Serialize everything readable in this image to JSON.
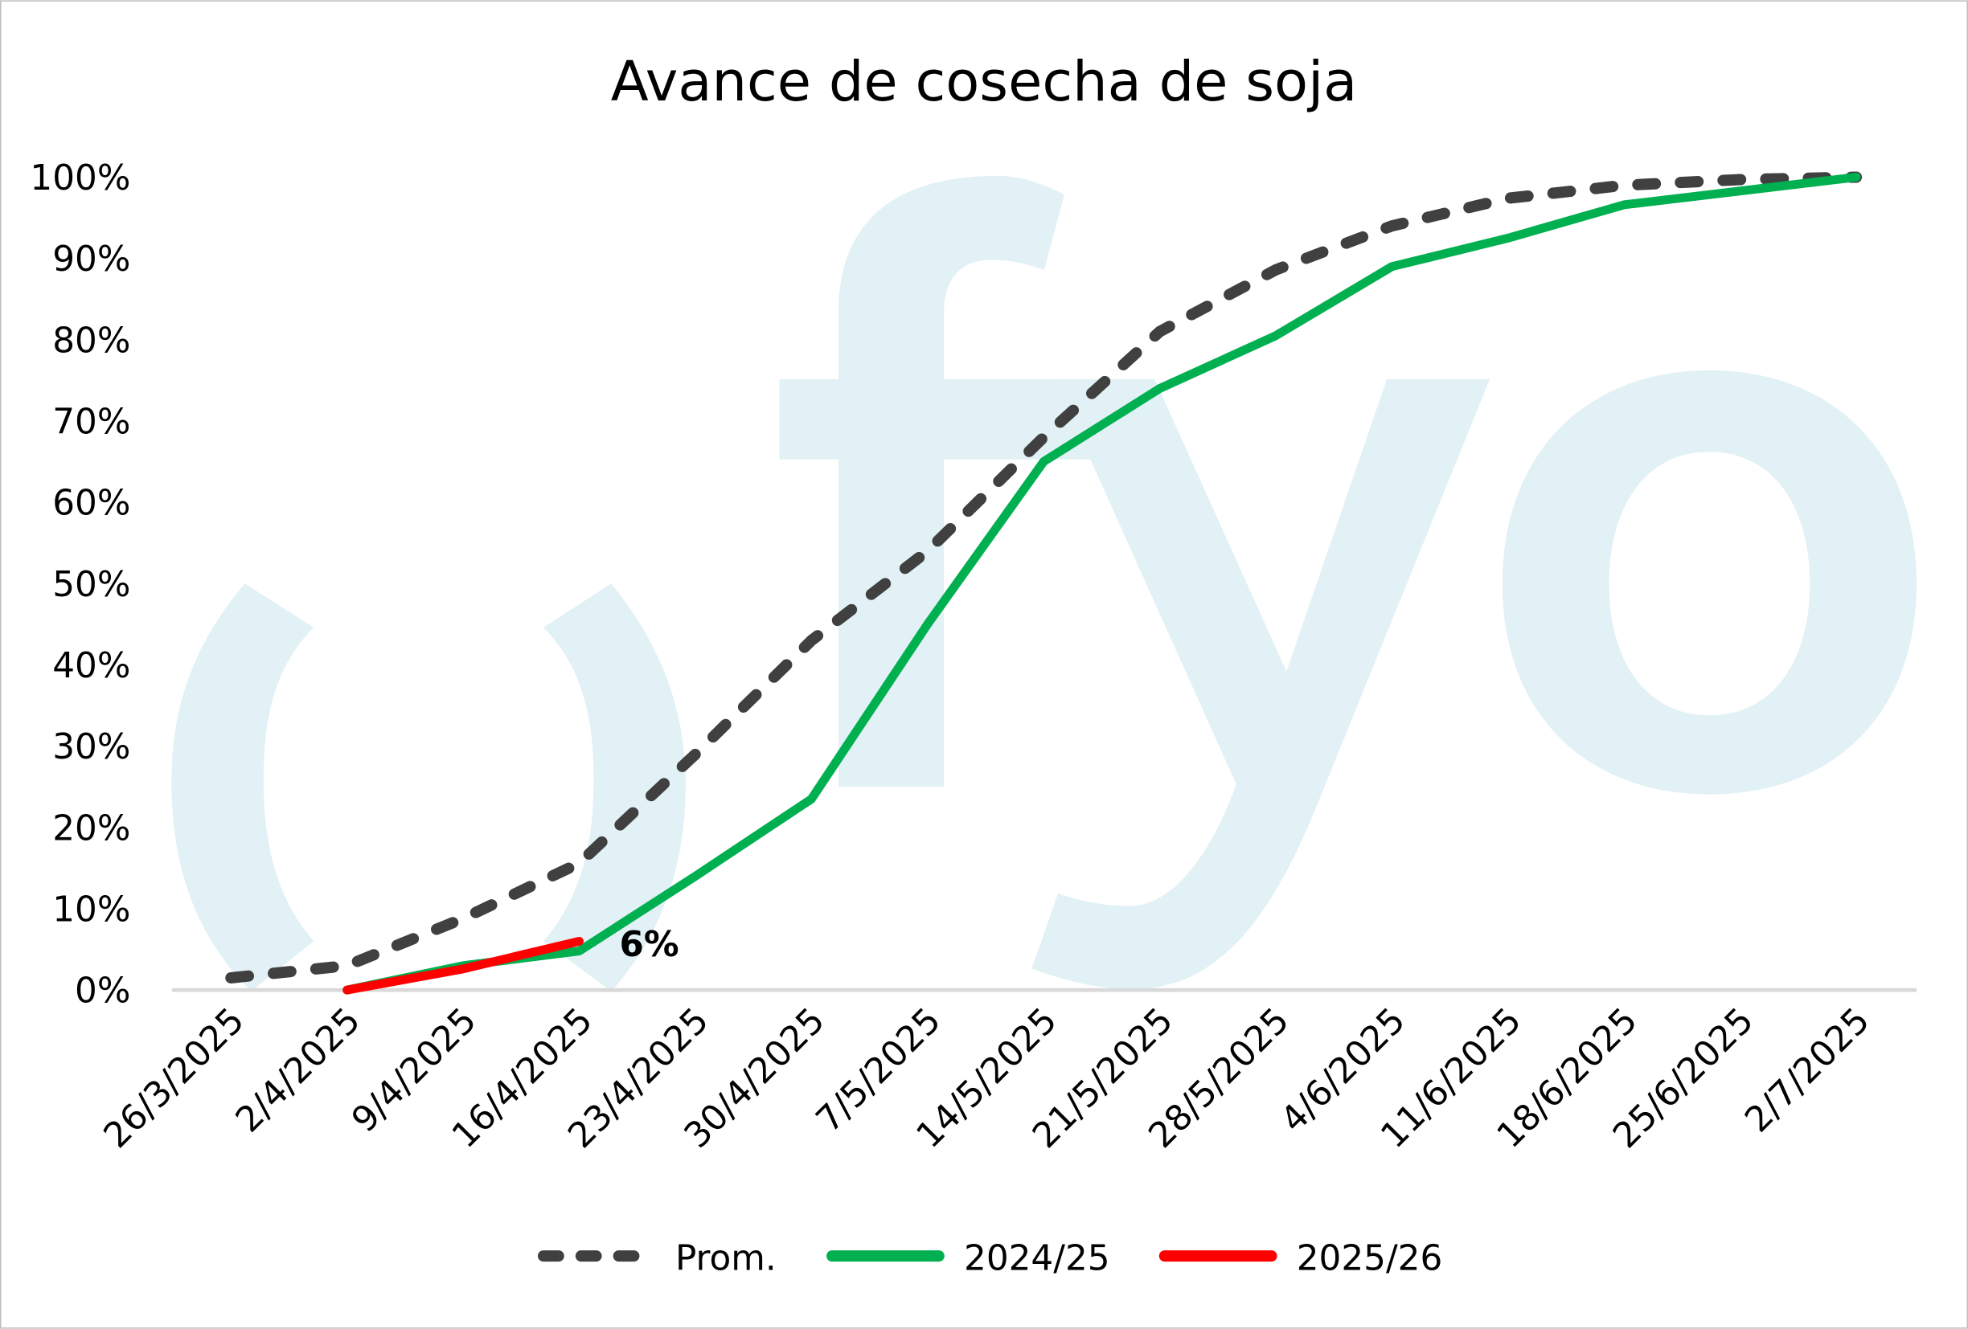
{
  "chart_data": {
    "type": "line",
    "title": "Avance de cosecha de soja",
    "xlabel": "",
    "ylabel": "",
    "ylim": [
      0,
      100
    ],
    "y_ticks": [
      "0%",
      "10%",
      "20%",
      "30%",
      "40%",
      "50%",
      "60%",
      "70%",
      "80%",
      "90%",
      "100%"
    ],
    "categories": [
      "26/3/2025",
      "2/4/2025",
      "9/4/2025",
      "16/4/2025",
      "23/4/2025",
      "30/4/2025",
      "7/5/2025",
      "14/5/2025",
      "21/5/2025",
      "28/5/2025",
      "4/6/2025",
      "11/6/2025",
      "18/6/2025",
      "25/6/2025",
      "2/7/2025"
    ],
    "series": [
      {
        "name": "Prom.",
        "color": "#404040",
        "dashed": true,
        "values": [
          1.5,
          3,
          8.8,
          15.6,
          29,
          43,
          54,
          68,
          81,
          88.6,
          94,
          97.4,
          99,
          99.7,
          100
        ]
      },
      {
        "name": "2024/25",
        "color": "#00b050",
        "dashed": false,
        "values": [
          null,
          0,
          3,
          4.8,
          14,
          23.5,
          45,
          65,
          74,
          80.5,
          89,
          92.5,
          96.6,
          98.3,
          100
        ]
      },
      {
        "name": "2025/26",
        "color": "#ff0000",
        "dashed": false,
        "values": [
          null,
          0,
          2.6,
          6,
          null,
          null,
          null,
          null,
          null,
          null,
          null,
          null,
          null,
          null,
          null
        ]
      }
    ],
    "annotations": [
      {
        "text": "6%",
        "series": "2025/26",
        "category": "16/4/2025"
      }
    ],
    "legend_position": "bottom",
    "grid": false,
    "watermark": "fyo",
    "watermark_color": "#e2f1f5"
  }
}
